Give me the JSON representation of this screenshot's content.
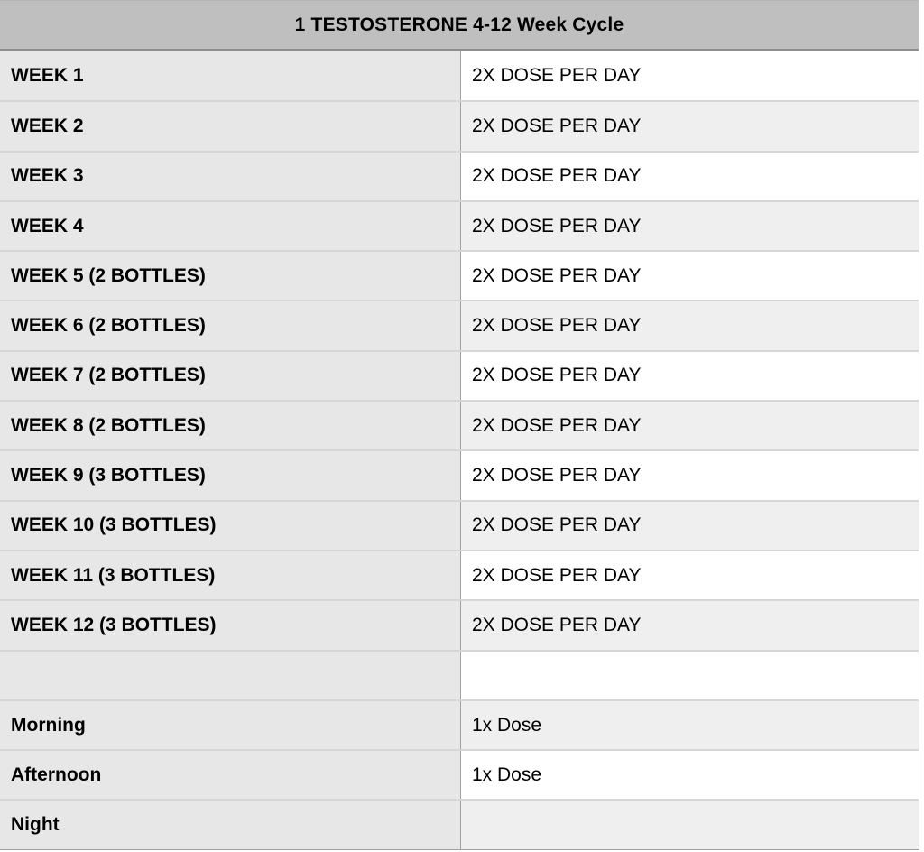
{
  "table": {
    "title": "1 TESTOSTERONE 4-12 Week Cycle",
    "colors": {
      "header_bg": "#bfbfbf",
      "label_column_bg": "#e7e7e7",
      "stripe_bg": "#efefef",
      "plain_bg": "#ffffff",
      "header_rule": "#8e8e8e",
      "row_rule": "#d6d6d6",
      "column_divider": "#a2a2a2",
      "text": "#000000"
    },
    "rows": [
      {
        "label": "WEEK 1",
        "value": "2X DOSE PER DAY"
      },
      {
        "label": "WEEK 2",
        "value": "2X DOSE PER DAY"
      },
      {
        "label": "WEEK 3",
        "value": "2X DOSE PER DAY"
      },
      {
        "label": "WEEK 4",
        "value": "2X DOSE PER DAY"
      },
      {
        "label": "WEEK 5 (2 BOTTLES)",
        "value": "2X DOSE PER DAY"
      },
      {
        "label": "WEEK 6 (2 BOTTLES)",
        "value": "2X DOSE PER DAY"
      },
      {
        "label": "WEEK 7 (2 BOTTLES)",
        "value": "2X DOSE PER DAY"
      },
      {
        "label": "WEEK 8 (2 BOTTLES)",
        "value": "2X DOSE PER DAY"
      },
      {
        "label": "WEEK 9 (3 BOTTLES)",
        "value": "2X DOSE PER DAY"
      },
      {
        "label": "WEEK 10 (3 BOTTLES)",
        "value": "2X DOSE PER DAY"
      },
      {
        "label": "WEEK 11 (3 BOTTLES)",
        "value": "2X DOSE PER DAY"
      },
      {
        "label": "WEEK 12 (3 BOTTLES)",
        "value": "2X DOSE PER DAY"
      },
      {
        "label": "",
        "value": ""
      },
      {
        "label": "Morning",
        "value": "1x Dose"
      },
      {
        "label": "Afternoon",
        "value": "1x Dose"
      },
      {
        "label": "Night",
        "value": ""
      }
    ]
  }
}
